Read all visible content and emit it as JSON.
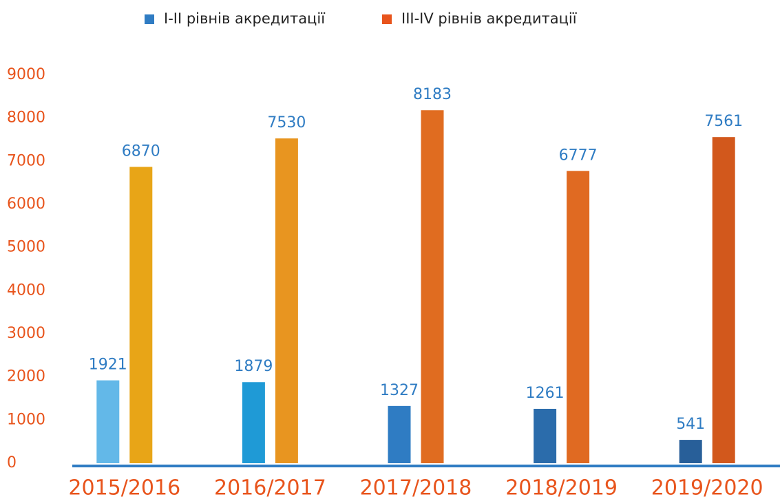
{
  "chart_data": {
    "type": "bar",
    "categories": [
      "2015/2016",
      "2016/2017",
      "2017/2018",
      "2018/2019",
      "2019/2020"
    ],
    "series": [
      {
        "name": "I-II рівнів акредитації",
        "color": "#2f7cc3",
        "colors": [
          "#63b8e8",
          "#1f9ad6",
          "#2f7cc3",
          "#2b6cab",
          "#285f99"
        ],
        "values": [
          1921,
          1879,
          1327,
          1261,
          541
        ]
      },
      {
        "name": "III-IV рівнів акредитації",
        "color": "#e8541c",
        "colors": [
          "#e8a517",
          "#e89520",
          "#e06c20",
          "#e06a22",
          "#d2581c"
        ],
        "values": [
          6870,
          7530,
          8183,
          6777,
          7561
        ]
      }
    ],
    "ylim": [
      0,
      9000
    ],
    "yticks": [
      0,
      1000,
      2000,
      3000,
      4000,
      5000,
      6000,
      7000,
      8000,
      9000
    ],
    "legend": "top"
  }
}
